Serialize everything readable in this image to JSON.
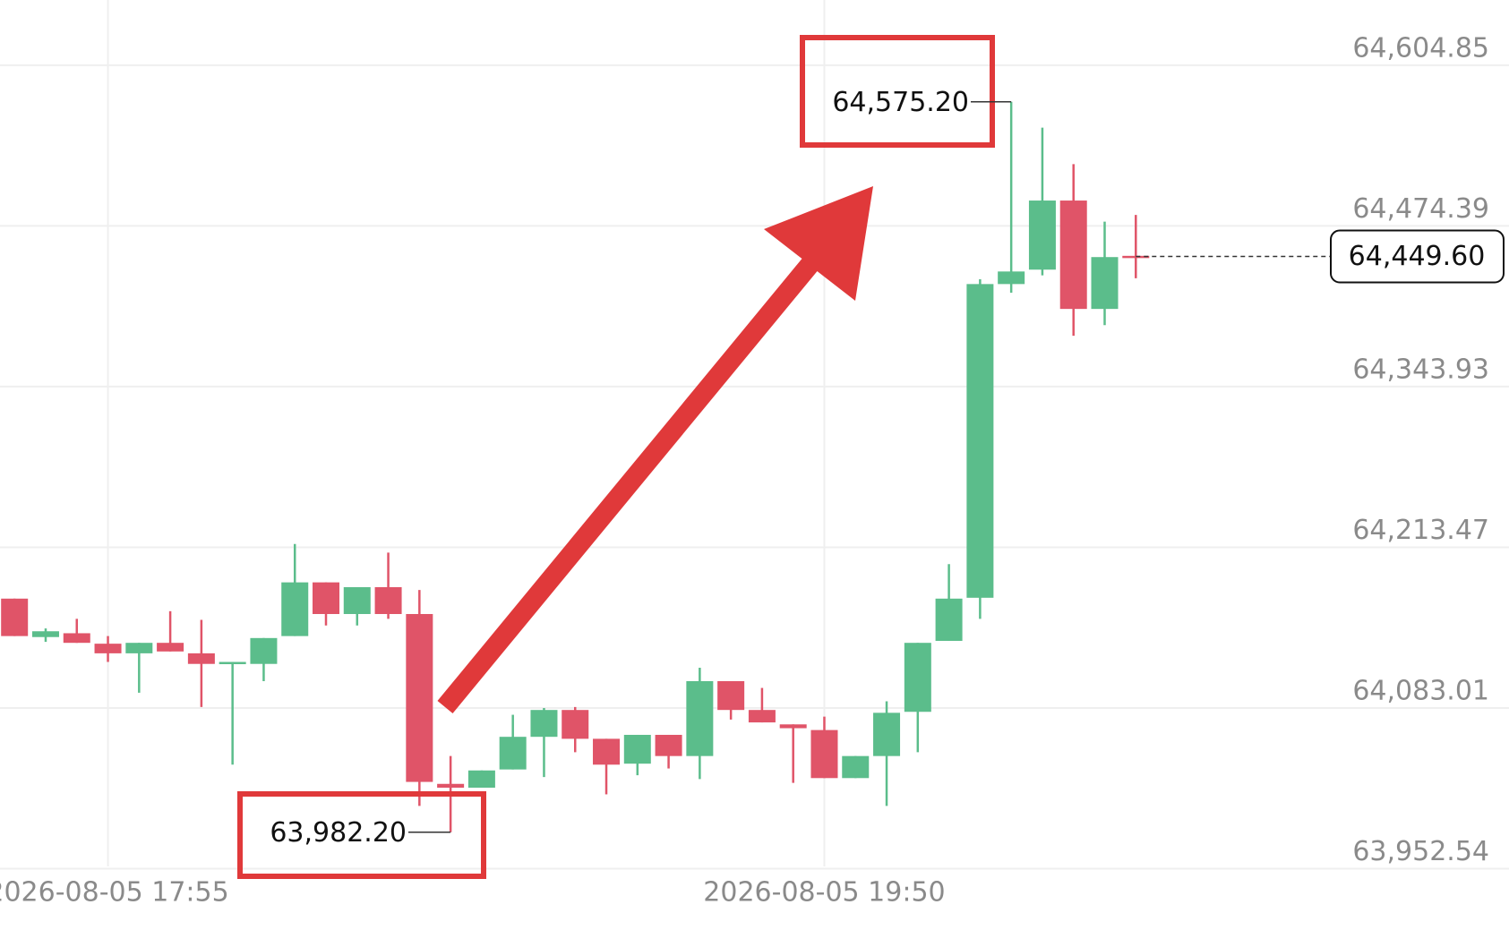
{
  "chart_data": {
    "type": "candlestick",
    "x": [
      null,
      null,
      null,
      "2026-08-05 17:55",
      null,
      null,
      null,
      null,
      null,
      null,
      null,
      null,
      null,
      null,
      null,
      null,
      null,
      null,
      null,
      null,
      null,
      null,
      null,
      null,
      null,
      null,
      "2026-08-05 19:50",
      null,
      null,
      null,
      null,
      null,
      null,
      null,
      null,
      null,
      null
    ],
    "open": [
      64171.8,
      64140.6,
      64143.7,
      64135.2,
      64127.4,
      64135.9,
      64127.4,
      64118.8,
      64118.8,
      64141.4,
      64185.0,
      64159.3,
      64181.1,
      64159.3,
      64021.4,
      64018.3,
      64033.1,
      64059.6,
      64081.4,
      64058.0,
      64037.8,
      64061.2,
      64044.0,
      64104.8,
      64081.4,
      64069.7,
      64065.1,
      64026.1,
      64044.0,
      64079.9,
      64137.5,
      64172.5,
      64427.2,
      64438.9,
      64495.0,
      64407.0,
      64450.1
    ],
    "high": [
      64171.8,
      64147.6,
      64155.4,
      64141.4,
      64135.9,
      64161.6,
      64154.6,
      64120.4,
      64139.8,
      64216.2,
      64185.0,
      64181.1,
      64209.2,
      64178.8,
      64044.0,
      64032.3,
      64077.5,
      64083.0,
      64083.8,
      64058.0,
      64061.2,
      64061.2,
      64115.7,
      64104.8,
      64099.3,
      64069.7,
      64076.0,
      64044.0,
      64088.4,
      64135.9,
      64199.8,
      64431.1,
      64575.2,
      64554.2,
      64524.6,
      64477.9,
      64483.3
    ],
    "low": [
      64141.4,
      64136.7,
      64135.9,
      64120.4,
      64095.4,
      64128.9,
      64083.8,
      64037.0,
      64104.8,
      64141.4,
      64150.0,
      64150.0,
      64155.4,
      64003.5,
      63982.2,
      64018.3,
      64033.1,
      64026.9,
      64047.1,
      64012.9,
      64028.4,
      64033.9,
      64025.3,
      64073.6,
      64071.3,
      64022.2,
      64026.1,
      64026.1,
      64003.5,
      64047.1,
      64137.5,
      64155.4,
      64420.2,
      64434.3,
      64385.2,
      64393.8,
      64431.9
    ],
    "close": [
      64141.4,
      64145.3,
      64135.9,
      64127.4,
      64135.9,
      64128.9,
      64118.8,
      64120.4,
      64139.8,
      64185.0,
      64159.3,
      64181.1,
      64159.3,
      64023.0,
      64018.3,
      64032.3,
      64059.6,
      64081.4,
      64058.0,
      64037.0,
      64061.2,
      64044.0,
      64104.8,
      64081.4,
      64071.3,
      64066.6,
      64026.1,
      64044.0,
      64079.1,
      64135.9,
      64171.8,
      64427.2,
      64437.4,
      64495.0,
      64407.0,
      64449.1,
      64449.6
    ],
    "up_color": "#5bbd8b",
    "down_color": "#e05468",
    "ylim": [
      63950,
      64660
    ],
    "yticks": [
      {
        "value": 63952.54,
        "label": "63,952.54"
      },
      {
        "value": 64083.01,
        "label": "64,083.01"
      },
      {
        "value": 64213.47,
        "label": "64,213.47"
      },
      {
        "value": 64343.93,
        "label": "64,343.93"
      },
      {
        "value": 64474.39,
        "label": "64,474.39"
      },
      {
        "value": 64604.85,
        "label": "64,604.85"
      }
    ],
    "grid": true,
    "high_label": {
      "value": 64575.2,
      "label": "64,575.20"
    },
    "low_label": {
      "value": 63982.2,
      "label": "63,982.20"
    },
    "last_price": {
      "value": 64449.6,
      "label": "64,449.60"
    }
  }
}
